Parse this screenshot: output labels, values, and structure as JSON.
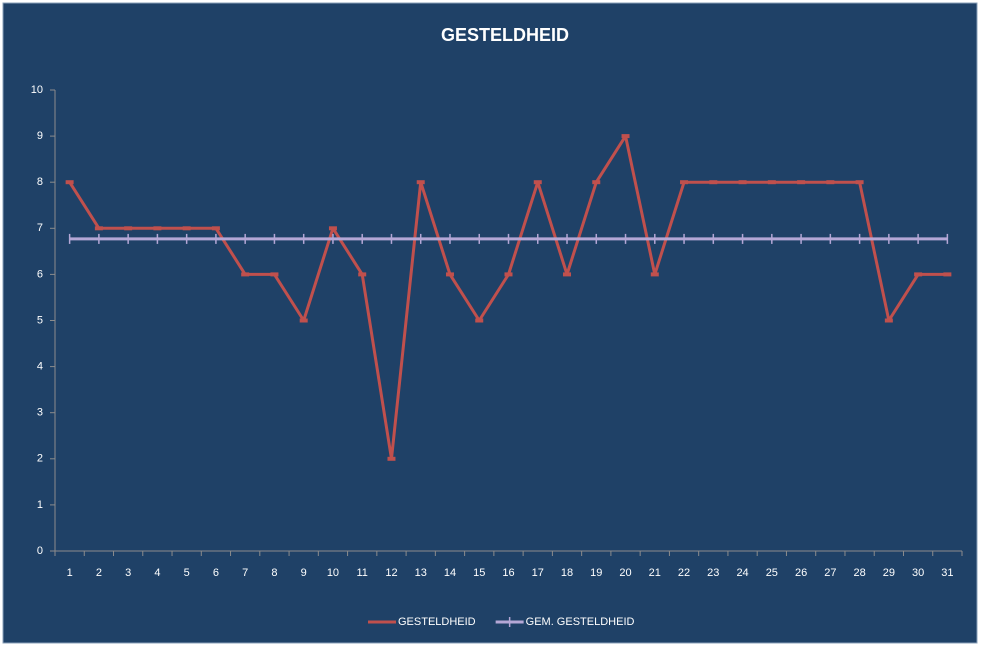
{
  "chart_data": {
    "type": "line",
    "title": "GESTELDHEID",
    "categories": [
      "1",
      "2",
      "3",
      "4",
      "5",
      "6",
      "7",
      "8",
      "9",
      "10",
      "11",
      "12",
      "13",
      "14",
      "15",
      "16",
      "17",
      "18",
      "19",
      "20",
      "21",
      "22",
      "23",
      "24",
      "25",
      "26",
      "27",
      "28",
      "29",
      "30",
      "31"
    ],
    "series": [
      {
        "name": "GESTELDHEID",
        "color": "#c0504d",
        "values": [
          8,
          7,
          7,
          7,
          7,
          7,
          6,
          6,
          5,
          7,
          6,
          2,
          8,
          6,
          5,
          6,
          8,
          6,
          8,
          9,
          6,
          8,
          8,
          8,
          8,
          8,
          8,
          8,
          5,
          6,
          6
        ]
      },
      {
        "name": "GEM. GESTELDHEID",
        "color": "#b4a7d6",
        "values": [
          6.77,
          6.77,
          6.77,
          6.77,
          6.77,
          6.77,
          6.77,
          6.77,
          6.77,
          6.77,
          6.77,
          6.77,
          6.77,
          6.77,
          6.77,
          6.77,
          6.77,
          6.77,
          6.77,
          6.77,
          6.77,
          6.77,
          6.77,
          6.77,
          6.77,
          6.77,
          6.77,
          6.77,
          6.77,
          6.77,
          6.77
        ]
      }
    ],
    "ylim": [
      0,
      10
    ],
    "yticks": [
      0,
      1,
      2,
      3,
      4,
      5,
      6,
      7,
      8,
      9,
      10
    ],
    "grid": false,
    "legend": "bottom"
  }
}
